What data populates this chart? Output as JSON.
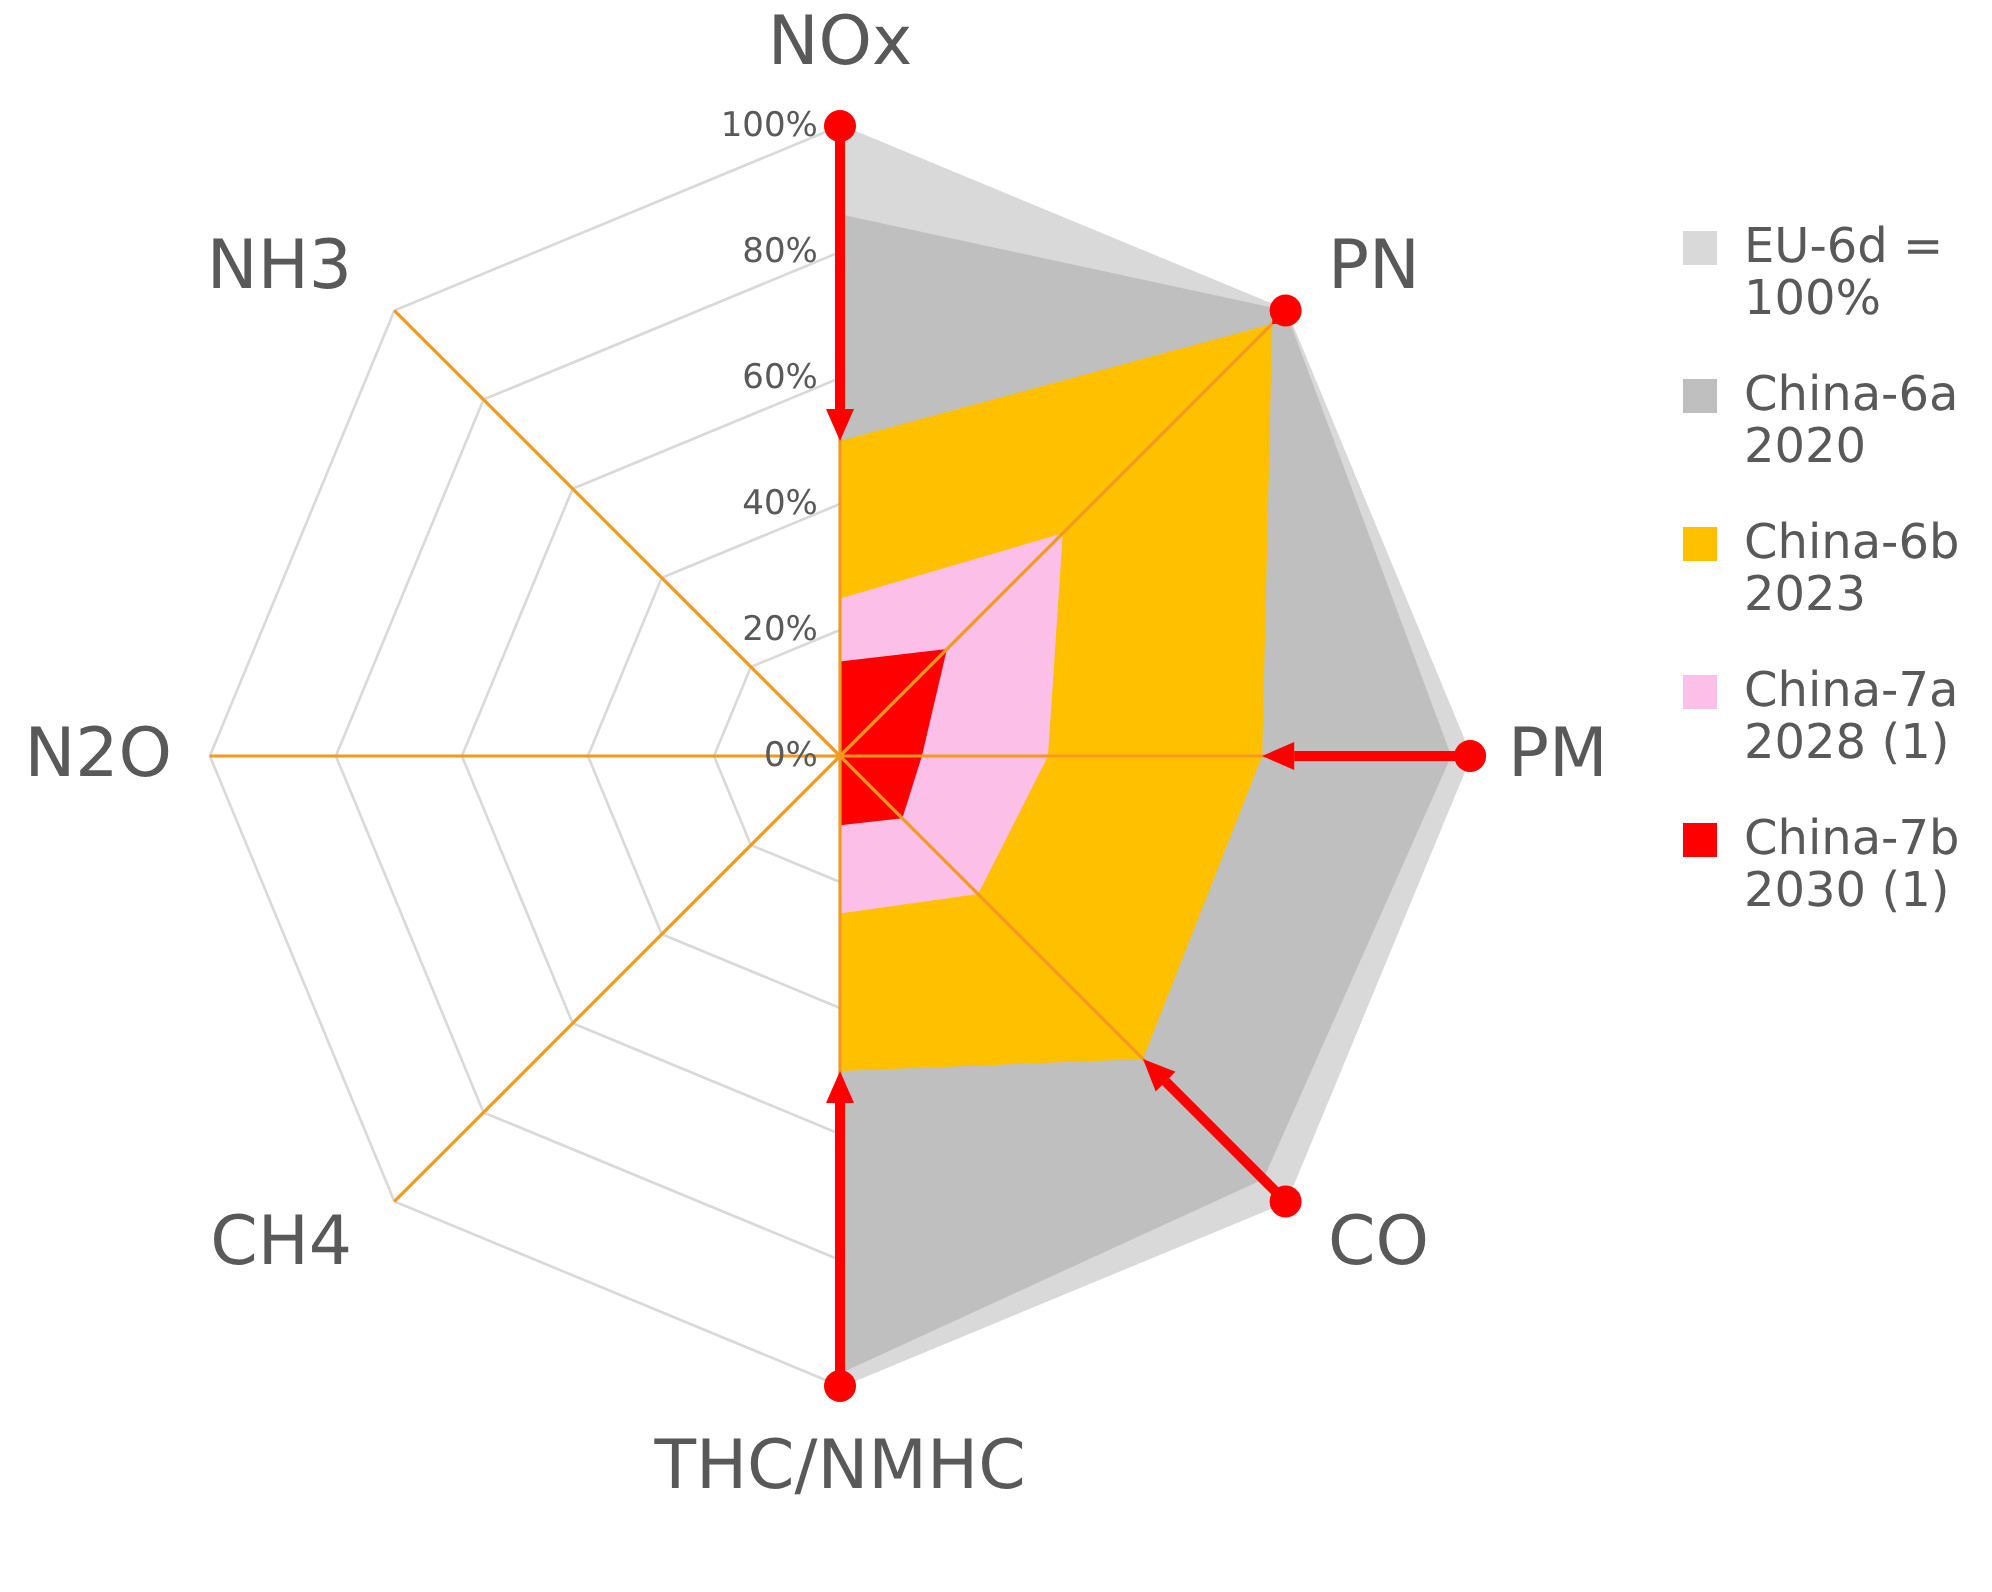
{
  "chart_data": {
    "type": "radar",
    "categories": [
      "NOx",
      "PN",
      "PM",
      "CO",
      "THC/NMHC",
      "CH4",
      "N2O",
      "NH3"
    ],
    "ylim": [
      0,
      100
    ],
    "yticks": [
      {
        "value": 0,
        "label": "0%"
      },
      {
        "value": 20,
        "label": "20%"
      },
      {
        "value": 40,
        "label": "40%"
      },
      {
        "value": 60,
        "label": "60%"
      },
      {
        "value": 80,
        "label": "80%"
      },
      {
        "value": 100,
        "label": "100%"
      }
    ],
    "grid": true,
    "legend": "right",
    "series": [
      {
        "name": "EU-6d = 100%",
        "color": "#d9d9d9",
        "values": [
          100,
          100,
          100,
          100,
          100,
          0,
          0,
          0
        ]
      },
      {
        "name": "China-6a 2020",
        "color": "#bfbfbf",
        "values": [
          86,
          100,
          97,
          95,
          98,
          0,
          0,
          0
        ]
      },
      {
        "name": "China-6b 2023",
        "color": "#ffc000",
        "values": [
          50,
          97,
          67,
          68,
          50,
          0,
          0,
          0
        ]
      },
      {
        "name": "China-7a 2028 (1)",
        "color": "#fcc0e8",
        "values": [
          25,
          50,
          33,
          31,
          25,
          0,
          0,
          0
        ]
      },
      {
        "name": "China-7b 2030 (1)",
        "color": "#ff0000",
        "values": [
          15,
          24,
          13,
          14,
          11,
          0,
          0,
          0
        ]
      }
    ]
  }
}
